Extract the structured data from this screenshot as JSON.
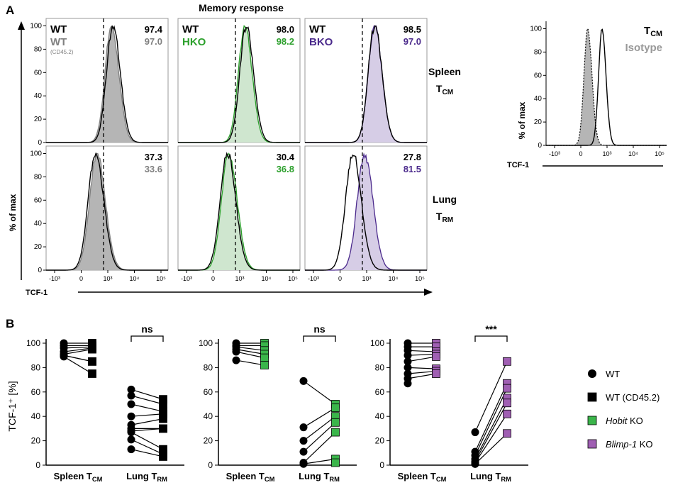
{
  "panel_labels": {
    "a": "A",
    "b": "B"
  },
  "colors": {
    "wt": "#000000",
    "wt2": "#808080",
    "hko": "#2ca02c",
    "bko": "#4b2a8c",
    "wt_fill": "#b5b5b5",
    "hko_fill": "#cfe6cf",
    "bko_fill": "#d6cde6",
    "hko_sq": "#3ab54a",
    "bko_sq": "#a05fb3"
  },
  "chart_data": [
    {
      "type": "histogram-grid",
      "title": "Memory response",
      "xlabel": "TCF-1",
      "ylabel": "% of max",
      "x_ticks": [
        "-10³",
        "0",
        "10³",
        "10⁴",
        "10⁵"
      ],
      "y_ticks": [
        "0",
        "20",
        "40",
        "60",
        "80",
        "100"
      ],
      "row_labels": [
        {
          "name": "Spleen",
          "sub_main": "T",
          "sub": "CM"
        },
        {
          "name": "Lung",
          "sub_main": "T",
          "sub": "RM"
        }
      ],
      "columns": [
        {
          "ref_label": "WT",
          "cmp_label": "WT",
          "cmp_note": "(CD45.2)",
          "color": "#808080"
        },
        {
          "ref_label": "WT",
          "cmp_label": "HKO",
          "color": "#2ca02c"
        },
        {
          "ref_label": "WT",
          "cmp_label": "BKO",
          "color": "#4b2a8c"
        }
      ],
      "percent_positive": [
        [
          {
            "ref": "97.4",
            "cmp": "97.0"
          },
          {
            "ref": "98.0",
            "cmp": "98.2"
          },
          {
            "ref": "98.5",
            "cmp": "97.0"
          }
        ],
        [
          {
            "ref": "37.3",
            "cmp": "33.6"
          },
          {
            "ref": "30.4",
            "cmp": "36.8"
          },
          {
            "ref": "27.8",
            "cmp": "81.5"
          }
        ]
      ],
      "peak_positions_tick_units": [
        [
          {
            "ref": 2.3,
            "cmp": 2.25
          },
          {
            "ref": 2.35,
            "cmp": 2.3
          },
          {
            "ref": 2.4,
            "cmp": 2.4
          }
        ],
        [
          {
            "ref": 1.7,
            "cmp": 1.75
          },
          {
            "ref": 1.7,
            "cmp": 1.75
          },
          {
            "ref": 1.65,
            "cmp": 2.05
          }
        ]
      ]
    },
    {
      "type": "histogram",
      "title_main": "T",
      "title_sub": "CM",
      "legend": "Isotype",
      "xlabel": "TCF-1",
      "ylabel": "% of max",
      "x_ticks": [
        "-10³",
        "0",
        "10³",
        "10⁴",
        "10⁵"
      ],
      "y_ticks": [
        "0",
        "20",
        "40",
        "60",
        "80",
        "100"
      ],
      "isotype_peak_tick_units": 1.45,
      "tcm_peak_tick_units": 1.95
    },
    {
      "type": "paired-scatter",
      "ylabel": "TCF-1⁺ [%]",
      "ylim": [
        0,
        100
      ],
      "y_ticks": [
        0,
        20,
        40,
        60,
        80,
        100
      ],
      "categories": [
        {
          "main": "Spleen T",
          "sub": "CM"
        },
        {
          "main": "Lung T",
          "sub": "RM"
        }
      ],
      "panels": [
        {
          "comparison": "WT vs WT (CD45.2)",
          "significance": "ns",
          "spleen": {
            "wt": [
              100,
              98,
              96,
              93,
              91,
              90,
              90,
              89
            ],
            "ko": [
              100,
              98,
              97,
              96,
              95,
              85,
              85,
              75
            ]
          },
          "lung": {
            "wt": [
              62,
              57,
              50,
              40,
              33,
              30,
              28,
              27,
              21,
              13
            ],
            "ko": [
              54,
              50,
              44,
              42,
              38,
              30,
              30,
              13,
              9,
              7
            ]
          }
        },
        {
          "comparison": "WT vs Hobit KO",
          "significance": "ns",
          "spleen": {
            "wt": [
              100,
              98,
              97,
              95,
              93,
              86
            ],
            "ko": [
              100,
              98,
              94,
              91,
              88,
              82
            ]
          },
          "lung": {
            "wt": [
              69,
              31,
              20,
              11,
              2,
              1
            ],
            "ko": [
              50,
              47,
              40,
              35,
              27,
              5,
              2
            ]
          }
        },
        {
          "comparison": "WT vs Blimp-1 KO",
          "significance": "***",
          "spleen": {
            "wt": [
              100,
              97,
              94,
              90,
              85,
              80,
              75,
              71,
              67
            ],
            "ko": [
              100,
              97,
              93,
              91,
              89,
              79,
              77,
              75
            ]
          },
          "lung": {
            "wt": [
              27,
              11,
              8,
              5,
              3,
              2,
              1,
              1
            ],
            "ko": [
              85,
              67,
              63,
              55,
              51,
              42,
              26
            ]
          }
        }
      ],
      "legend": [
        {
          "label": "WT",
          "marker": "circle",
          "color": "#000000"
        },
        {
          "label": "WT (CD45.2)",
          "marker": "square",
          "color": "#000000"
        },
        {
          "label": "Hobit",
          "suffix": " KO",
          "marker": "square",
          "color": "#3ab54a"
        },
        {
          "label": "Blimp-1",
          "suffix": " KO",
          "marker": "square",
          "color": "#a05fb3"
        }
      ]
    }
  ]
}
